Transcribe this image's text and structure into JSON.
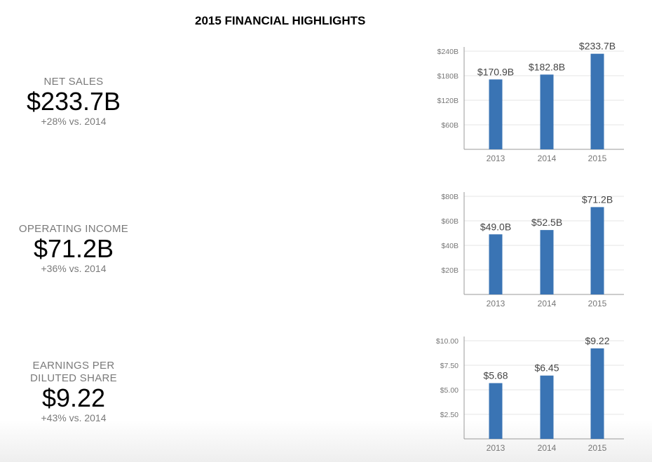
{
  "title": "2015 FINANCIAL HIGHLIGHTS",
  "colors": {
    "bar": "#3a74b4",
    "grid": "#e6e6e6",
    "axis": "#9a9a9a",
    "tick_label": "#777777",
    "data_label": "#444444"
  },
  "metrics": [
    {
      "label_lines": [
        "NET SALES"
      ],
      "value": "$233.7B",
      "change": "+28% vs. 2014"
    },
    {
      "label_lines": [
        "OPERATING INCOME"
      ],
      "value": "$71.2B",
      "change": "+36% vs. 2014"
    },
    {
      "label_lines": [
        "EARNINGS PER",
        "DILUTED SHARE"
      ],
      "value": "$9.22",
      "change": "+43% vs. 2014"
    }
  ],
  "chart_data": [
    {
      "type": "bar",
      "categories": [
        "2013",
        "2014",
        "2015"
      ],
      "values": [
        170.9,
        182.8,
        233.7
      ],
      "data_labels": [
        "$170.9B",
        "$182.8B",
        "$233.7B"
      ],
      "ylim": [
        0,
        240
      ],
      "yticks": [
        60,
        120,
        180,
        240
      ],
      "ytick_labels": [
        "$60B",
        "$120B",
        "$180B",
        "$240B"
      ],
      "title": "",
      "xlabel": "",
      "ylabel": "",
      "grid": true
    },
    {
      "type": "bar",
      "categories": [
        "2013",
        "2014",
        "2015"
      ],
      "values": [
        49.0,
        52.5,
        71.2
      ],
      "data_labels": [
        "$49.0B",
        "$52.5B",
        "$71.2B"
      ],
      "ylim": [
        0,
        80
      ],
      "yticks": [
        20,
        40,
        60,
        80
      ],
      "ytick_labels": [
        "$20B",
        "$40B",
        "$60B",
        "$80B"
      ],
      "title": "",
      "xlabel": "",
      "ylabel": "",
      "grid": true
    },
    {
      "type": "bar",
      "categories": [
        "2013",
        "2014",
        "2015"
      ],
      "values": [
        5.68,
        6.45,
        9.22
      ],
      "data_labels": [
        "$5.68",
        "$6.45",
        "$9.22"
      ],
      "ylim": [
        0,
        10
      ],
      "yticks": [
        2.5,
        5,
        7.5,
        10
      ],
      "ytick_labels": [
        "$2.50",
        "$5.00",
        "$7.50",
        "$10.00"
      ],
      "title": "",
      "xlabel": "",
      "ylabel": "",
      "grid": true
    }
  ]
}
